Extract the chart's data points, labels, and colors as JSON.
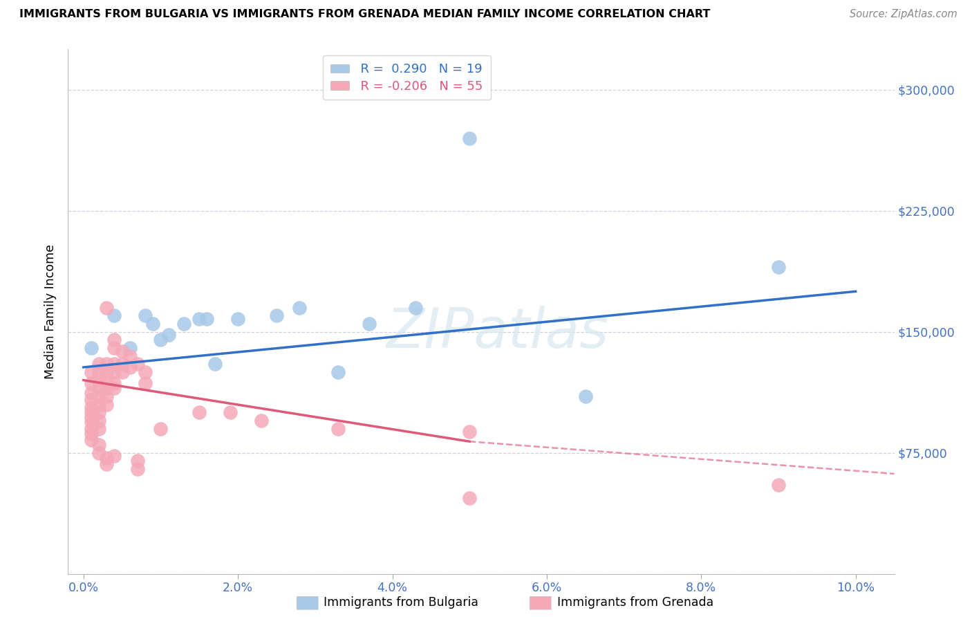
{
  "title": "IMMIGRANTS FROM BULGARIA VS IMMIGRANTS FROM GRENADA MEDIAN FAMILY INCOME CORRELATION CHART",
  "source": "Source: ZipAtlas.com",
  "ylabel": "Median Family Income",
  "xlabel_ticks": [
    "0.0%",
    "2.0%",
    "4.0%",
    "6.0%",
    "8.0%",
    "10.0%"
  ],
  "xlabel_values": [
    0.0,
    0.02,
    0.04,
    0.06,
    0.08,
    0.1
  ],
  "ylim": [
    0,
    325000
  ],
  "xlim": [
    -0.002,
    0.105
  ],
  "yticks": [
    0,
    75000,
    150000,
    225000,
    300000
  ],
  "ytick_labels": [
    "",
    "$75,000",
    "$150,000",
    "$225,000",
    "$300,000"
  ],
  "bulgaria_line_color": "#3070c8",
  "grenada_line_color": "#e05878",
  "bulgaria_color": "#a8c8e8",
  "grenada_color": "#f4a8b8",
  "background_color": "#ffffff",
  "grid_color": "#d0d0e0",
  "watermark": "ZIPatlas",
  "bulgaria_line_x0": 0.0,
  "bulgaria_line_y0": 128000,
  "bulgaria_line_x1": 0.1,
  "bulgaria_line_y1": 175000,
  "grenada_line_x0": 0.0,
  "grenada_line_y0": 120000,
  "grenada_line_solid_x1": 0.05,
  "grenada_line_solid_y1": 82000,
  "grenada_line_dash_x1": 0.105,
  "grenada_line_dash_y1": 62000,
  "bulgaria_points": [
    [
      0.001,
      140000
    ],
    [
      0.004,
      160000
    ],
    [
      0.006,
      140000
    ],
    [
      0.008,
      160000
    ],
    [
      0.009,
      155000
    ],
    [
      0.01,
      145000
    ],
    [
      0.011,
      148000
    ],
    [
      0.013,
      155000
    ],
    [
      0.015,
      158000
    ],
    [
      0.016,
      158000
    ],
    [
      0.017,
      130000
    ],
    [
      0.02,
      158000
    ],
    [
      0.025,
      160000
    ],
    [
      0.028,
      165000
    ],
    [
      0.033,
      125000
    ],
    [
      0.037,
      155000
    ],
    [
      0.043,
      165000
    ],
    [
      0.05,
      270000
    ],
    [
      0.065,
      110000
    ],
    [
      0.09,
      190000
    ]
  ],
  "grenada_points": [
    [
      0.001,
      125000
    ],
    [
      0.001,
      118000
    ],
    [
      0.001,
      112000
    ],
    [
      0.001,
      108000
    ],
    [
      0.001,
      103000
    ],
    [
      0.001,
      100000
    ],
    [
      0.001,
      97000
    ],
    [
      0.001,
      94000
    ],
    [
      0.001,
      90000
    ],
    [
      0.001,
      87000
    ],
    [
      0.001,
      83000
    ],
    [
      0.002,
      130000
    ],
    [
      0.002,
      125000
    ],
    [
      0.002,
      120000
    ],
    [
      0.002,
      115000
    ],
    [
      0.002,
      110000
    ],
    [
      0.002,
      105000
    ],
    [
      0.002,
      100000
    ],
    [
      0.002,
      95000
    ],
    [
      0.002,
      90000
    ],
    [
      0.002,
      80000
    ],
    [
      0.002,
      75000
    ],
    [
      0.003,
      165000
    ],
    [
      0.003,
      130000
    ],
    [
      0.003,
      125000
    ],
    [
      0.003,
      120000
    ],
    [
      0.003,
      115000
    ],
    [
      0.003,
      110000
    ],
    [
      0.003,
      105000
    ],
    [
      0.003,
      72000
    ],
    [
      0.003,
      68000
    ],
    [
      0.004,
      145000
    ],
    [
      0.004,
      140000
    ],
    [
      0.004,
      130000
    ],
    [
      0.004,
      125000
    ],
    [
      0.004,
      118000
    ],
    [
      0.004,
      115000
    ],
    [
      0.004,
      73000
    ],
    [
      0.005,
      138000
    ],
    [
      0.005,
      130000
    ],
    [
      0.005,
      125000
    ],
    [
      0.006,
      135000
    ],
    [
      0.006,
      128000
    ],
    [
      0.007,
      130000
    ],
    [
      0.007,
      70000
    ],
    [
      0.007,
      65000
    ],
    [
      0.008,
      125000
    ],
    [
      0.008,
      118000
    ],
    [
      0.01,
      90000
    ],
    [
      0.015,
      100000
    ],
    [
      0.019,
      100000
    ],
    [
      0.023,
      95000
    ],
    [
      0.033,
      90000
    ],
    [
      0.05,
      88000
    ],
    [
      0.05,
      47000
    ],
    [
      0.09,
      55000
    ]
  ]
}
